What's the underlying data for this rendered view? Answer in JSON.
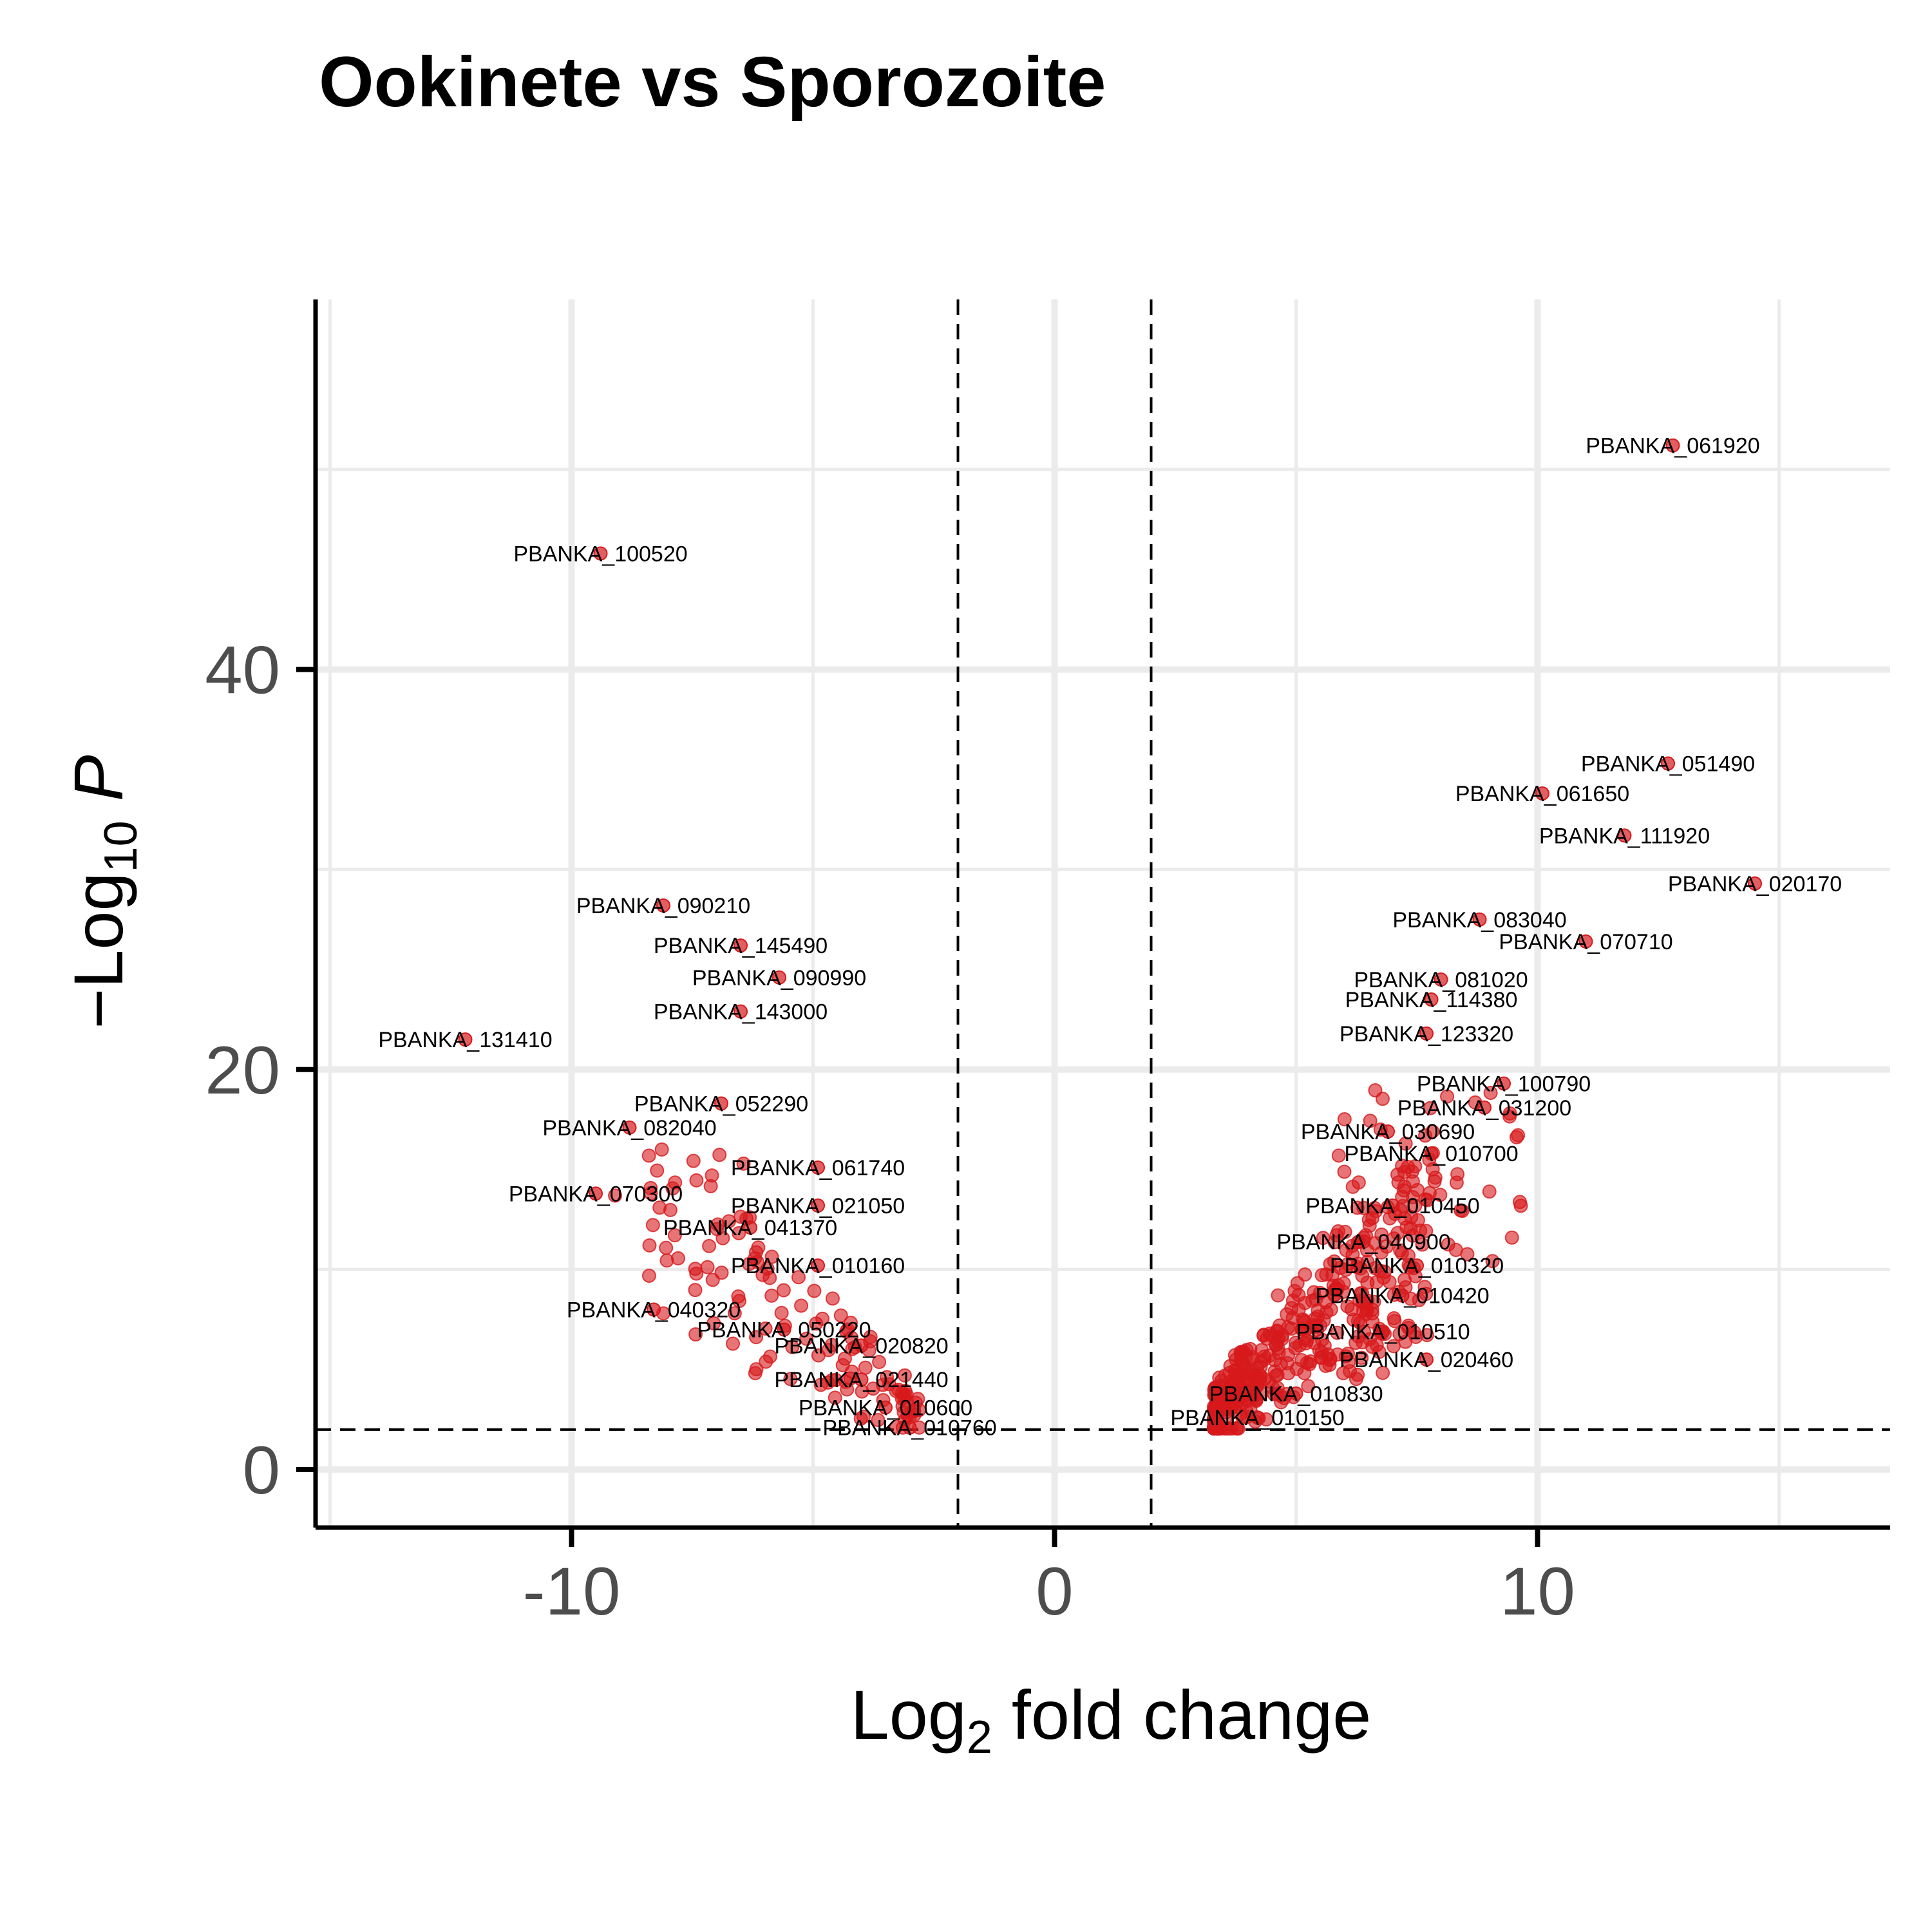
{
  "chart_data": {
    "type": "scatter",
    "title": "Ookinete vs Sporozoite",
    "xlabel": {
      "pre": "Log",
      "sub": "2",
      "post": " fold change"
    },
    "ylabel": {
      "pre": "−Log",
      "sub": "10",
      "italic": "P"
    },
    "xlim": [
      -15.3,
      17.3
    ],
    "ylim": [
      -2.9,
      58.5
    ],
    "x_ticks": [
      {
        "value": -10,
        "label": "-10"
      },
      {
        "value": 0,
        "label": "0"
      },
      {
        "value": 10,
        "label": "10"
      }
    ],
    "y_ticks": [
      {
        "value": 0,
        "label": "0"
      },
      {
        "value": 20,
        "label": "20"
      },
      {
        "value": 40,
        "label": "40"
      }
    ],
    "x_minor_grid": [
      -15,
      -5,
      5,
      15
    ],
    "y_minor_grid": [
      10,
      30,
      50
    ],
    "grid": true,
    "thresholds": {
      "fc_cutoffs": [
        -2,
        2
      ],
      "p_cutoff": 2
    },
    "point_color": "#d7191c",
    "labeled_genes": [
      {
        "name": "PBANKA_061920",
        "x": 12.8,
        "y": 51.2
      },
      {
        "name": "PBANKA_100520",
        "x": -9.4,
        "y": 45.8
      },
      {
        "name": "PBANKA_051490",
        "x": 12.7,
        "y": 35.3
      },
      {
        "name": "PBANKA_061650",
        "x": 10.1,
        "y": 33.8
      },
      {
        "name": "PBANKA_111920",
        "x": 11.8,
        "y": 31.7
      },
      {
        "name": "PBANKA_020170",
        "x": 14.5,
        "y": 29.3
      },
      {
        "name": "PBANKA_090210",
        "x": -8.1,
        "y": 28.2
      },
      {
        "name": "PBANKA_083040",
        "x": 8.8,
        "y": 27.5
      },
      {
        "name": "PBANKA_070710",
        "x": 11.0,
        "y": 26.4
      },
      {
        "name": "PBANKA_145490",
        "x": -6.5,
        "y": 26.2
      },
      {
        "name": "PBANKA_081020",
        "x": 8.0,
        "y": 24.5
      },
      {
        "name": "PBANKA_090990",
        "x": -5.7,
        "y": 24.6
      },
      {
        "name": "PBANKA_114380",
        "x": 7.8,
        "y": 23.5
      },
      {
        "name": "PBANKA_143000",
        "x": -6.5,
        "y": 22.9
      },
      {
        "name": "PBANKA_123320",
        "x": 7.7,
        "y": 21.8
      },
      {
        "name": "PBANKA_131410",
        "x": -12.2,
        "y": 21.5
      },
      {
        "name": "PBANKA_100790",
        "x": 9.3,
        "y": 19.3
      },
      {
        "name": "PBANKA_052290",
        "x": -6.9,
        "y": 18.3
      },
      {
        "name": "PBANKA_031200",
        "x": 8.9,
        "y": 18.1
      },
      {
        "name": "PBANKA_082040",
        "x": -8.8,
        "y": 17.1
      },
      {
        "name": "PBANKA_030690",
        "x": 6.9,
        "y": 16.9
      },
      {
        "name": "PBANKA_010700",
        "x": 7.8,
        "y": 15.8
      },
      {
        "name": "PBANKA_061740",
        "x": -4.9,
        "y": 15.1
      },
      {
        "name": "PBANKA_070300",
        "x": -9.5,
        "y": 13.8
      },
      {
        "name": "PBANKA_021050",
        "x": -4.9,
        "y": 13.2
      },
      {
        "name": "PBANKA_010450",
        "x": 7.0,
        "y": 13.2
      },
      {
        "name": "PBANKA_041370",
        "x": -6.3,
        "y": 12.1
      },
      {
        "name": "PBANKA_040900",
        "x": 6.4,
        "y": 11.4
      },
      {
        "name": "PBANKA_010320",
        "x": 7.5,
        "y": 10.2
      },
      {
        "name": "PBANKA_010160",
        "x": -4.9,
        "y": 10.2
      },
      {
        "name": "PBANKA_010420",
        "x": 7.2,
        "y": 8.7
      },
      {
        "name": "PBANKA_040320",
        "x": -8.3,
        "y": 8.0
      },
      {
        "name": "PBANKA_010510",
        "x": 6.8,
        "y": 6.9
      },
      {
        "name": "PBANKA_050220",
        "x": -5.6,
        "y": 7.0
      },
      {
        "name": "PBANKA_020820",
        "x": -4.0,
        "y": 6.2
      },
      {
        "name": "PBANKA_020460",
        "x": 7.7,
        "y": 5.5
      },
      {
        "name": "PBANKA_021440",
        "x": -4.0,
        "y": 4.5
      },
      {
        "name": "PBANKA_010830",
        "x": 5.0,
        "y": 3.8
      },
      {
        "name": "PBANKA_010600",
        "x": -3.5,
        "y": 3.1
      },
      {
        "name": "PBANKA_010150",
        "x": 4.2,
        "y": 2.6
      },
      {
        "name": "PBANKA_010760",
        "x": -3.0,
        "y": 2.1
      }
    ]
  }
}
